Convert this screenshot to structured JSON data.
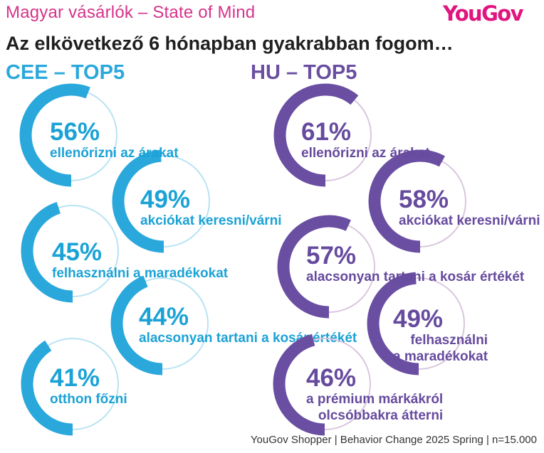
{
  "header": {
    "subtitle": "Magyar vásárlók – State of Mind",
    "brand": "YouGov",
    "headline": "Az elkövetkező 6 hónapban gyakrabban fogom…"
  },
  "colors": {
    "cee_fill": "#2aa8dc",
    "cee_track": "#b9e3f3",
    "hu_fill": "#6a4ea2",
    "hu_track": "#d9c6dd",
    "brand": "#e0157f",
    "subtitle": "#d6338a"
  },
  "chart_data": {
    "type": "donut",
    "panels": [
      {
        "id": "cee",
        "title": "CEE – TOP5",
        "items": [
          {
            "pct_label": "56%",
            "value": 56,
            "label_lines": [
              "ellenőrizni az árakat"
            ]
          },
          {
            "pct_label": "49%",
            "value": 49,
            "label_lines": [
              "akciókat keresni/várni"
            ]
          },
          {
            "pct_label": "45%",
            "value": 45,
            "label_lines": [
              "felhasználni a maradékokat"
            ]
          },
          {
            "pct_label": "44%",
            "value": 44,
            "label_lines": [
              "alacsonyan tartani a kosár értékét"
            ]
          },
          {
            "pct_label": "41%",
            "value": 41,
            "label_lines": [
              "otthon főzni"
            ]
          }
        ]
      },
      {
        "id": "hu",
        "title": "HU – TOP5",
        "items": [
          {
            "pct_label": "61%",
            "value": 61,
            "label_lines": [
              "ellenőrizni az árakat"
            ]
          },
          {
            "pct_label": "58%",
            "value": 58,
            "label_lines": [
              "akciókat keresni/várni"
            ]
          },
          {
            "pct_label": "57%",
            "value": 57,
            "label_lines": [
              "alacsonyan tartani a kosár értékét"
            ]
          },
          {
            "pct_label": "49%",
            "value": 49,
            "label_lines": [
              "felhasználni",
              "a maradékokat"
            ]
          },
          {
            "pct_label": "46%",
            "value": 46,
            "label_lines": [
              "a prémium márkákról",
              "olcsóbbakra átterni"
            ]
          }
        ]
      }
    ]
  },
  "footer": {
    "source": "YouGov Shopper | Behavior Change 2025 Spring | n=15.000"
  }
}
